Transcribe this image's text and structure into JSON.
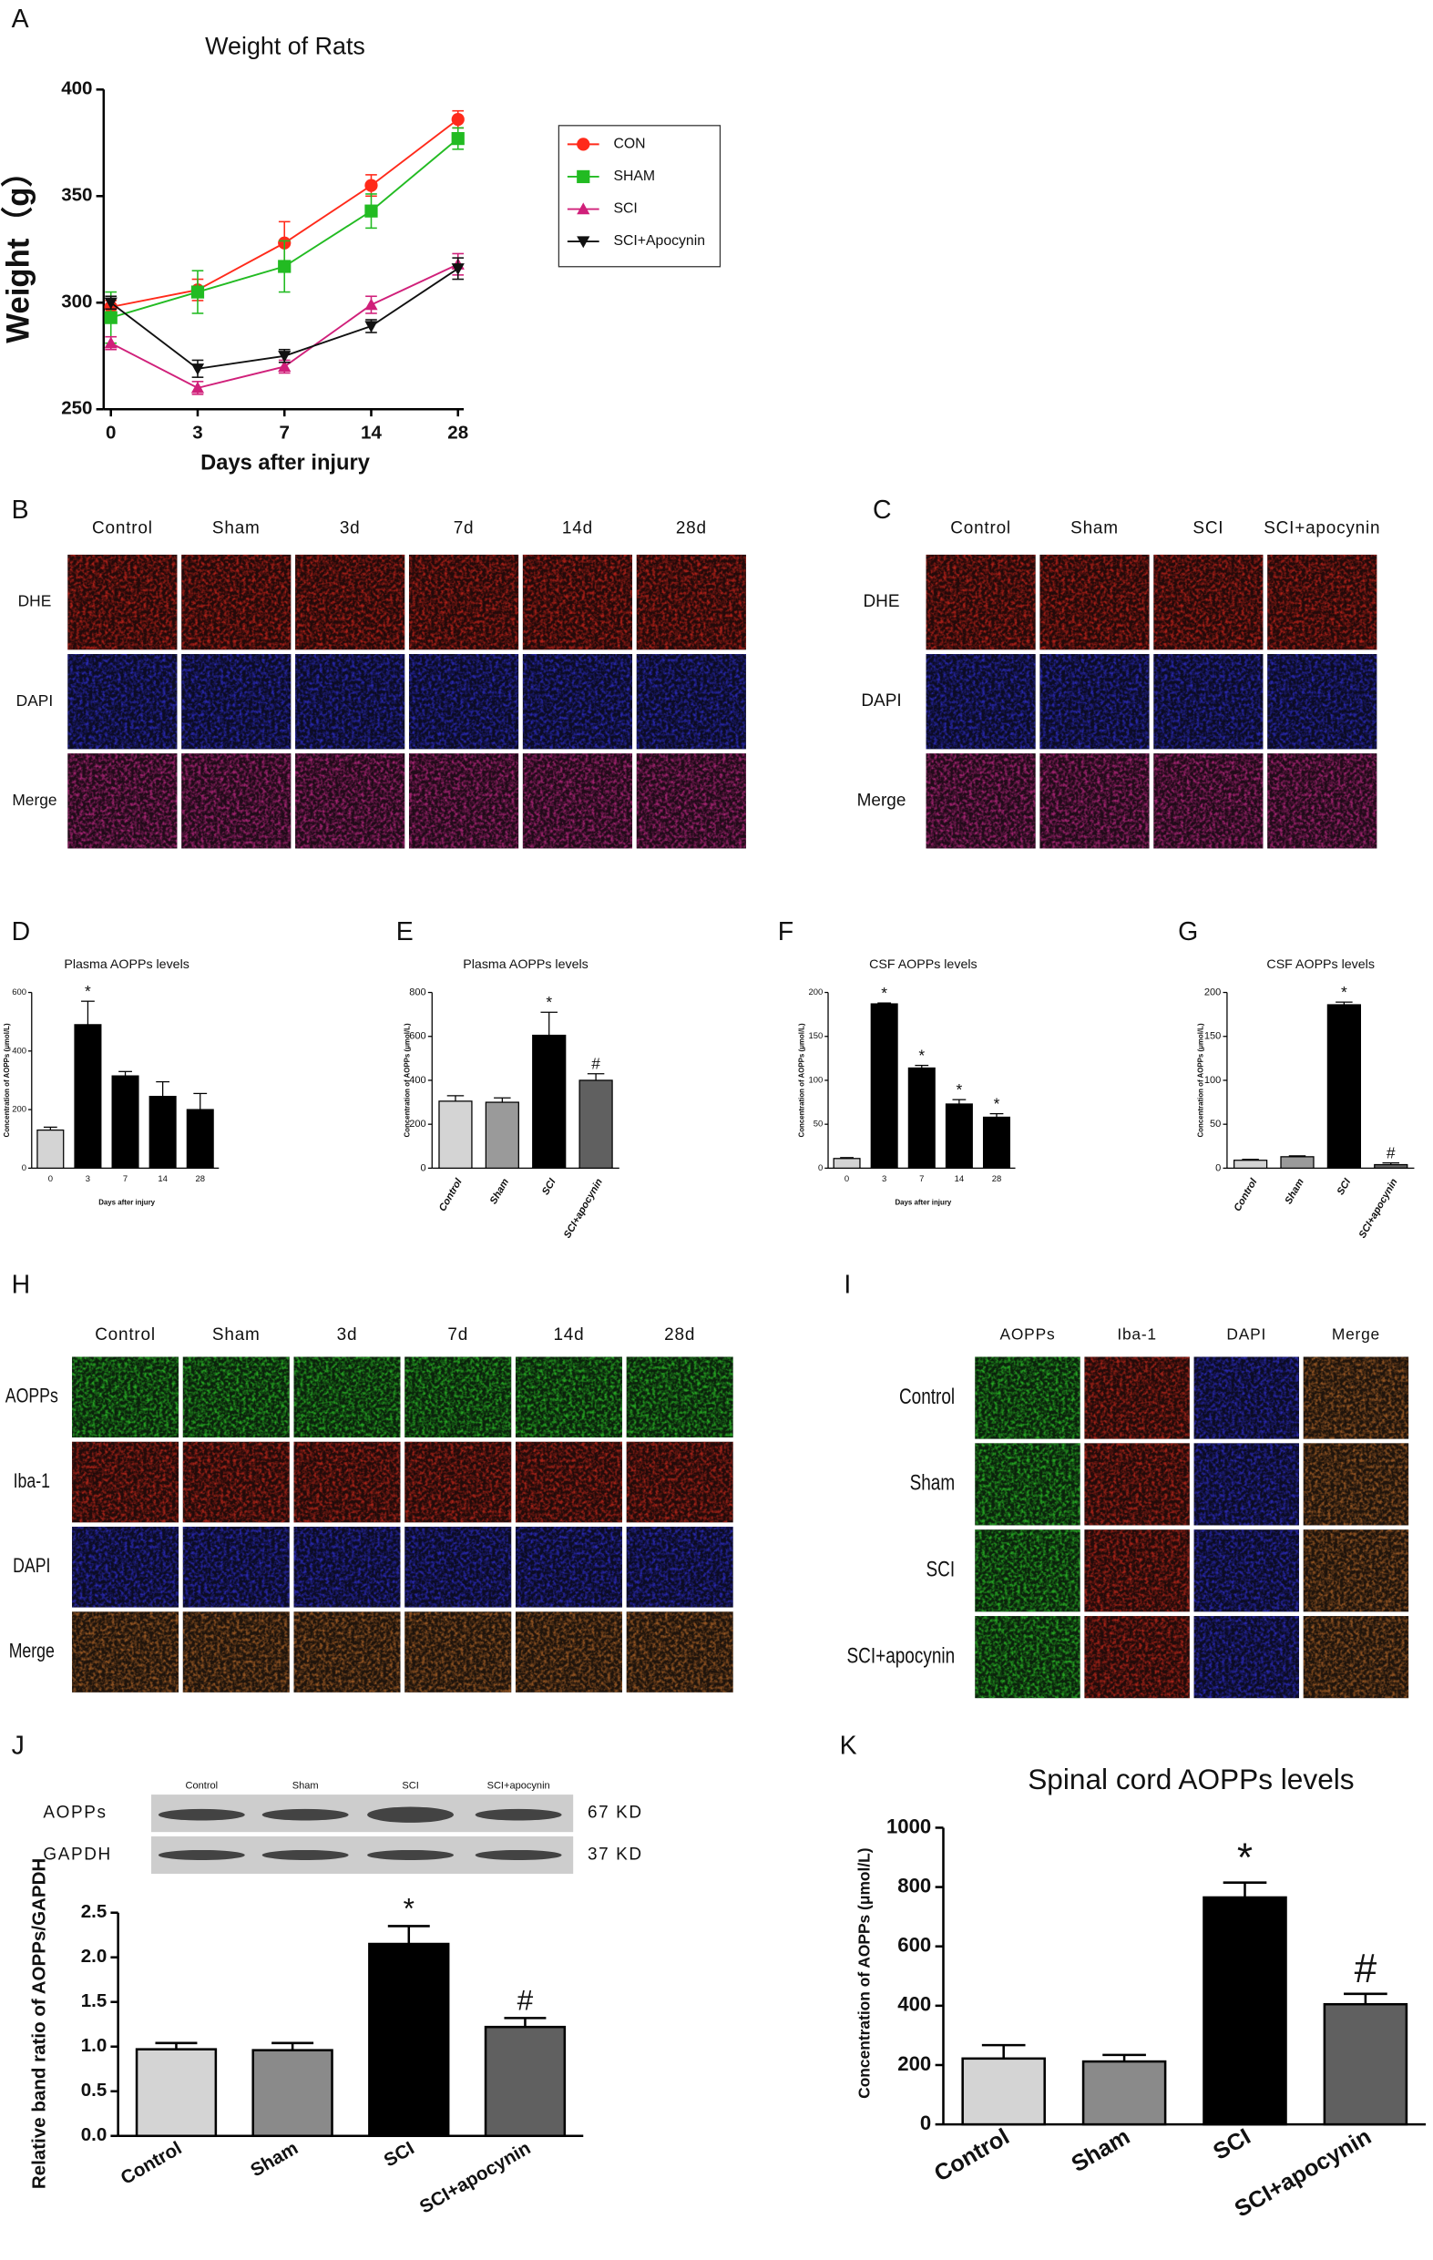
{
  "chart_data": [
    {
      "letter": "A",
      "type": "line",
      "title": "Weight of Rats",
      "x_label": "Days after injury",
      "y_label": "Weight（g）",
      "categories": [
        "0",
        "3",
        "7",
        "14",
        "28"
      ],
      "ylim": [
        250,
        400
      ],
      "yticks": [
        250,
        300,
        350,
        400
      ],
      "series": [
        {
          "name": "CON",
          "color": "#ff2a1a",
          "marker": "circle",
          "values": [
            298,
            306,
            328,
            355,
            386
          ],
          "errors": [
            3,
            5,
            10,
            5,
            4
          ]
        },
        {
          "name": "SHAM",
          "color": "#22bb22",
          "marker": "square",
          "values": [
            293,
            305,
            317,
            343,
            377
          ],
          "errors": [
            12,
            10,
            12,
            8,
            5
          ]
        },
        {
          "name": "SCI",
          "color": "#d0207a",
          "marker": "triangle-up",
          "values": [
            281,
            260,
            270,
            299,
            318
          ],
          "errors": [
            3,
            3,
            3,
            4,
            5
          ]
        },
        {
          "name": "SCI+Apocynin",
          "color": "#111111",
          "marker": "triangle-down",
          "values": [
            300,
            269,
            275,
            289,
            316
          ],
          "errors": [
            3,
            4,
            3,
            3,
            5
          ]
        }
      ]
    },
    {
      "letter": "D",
      "type": "bar",
      "title": "Plasma AOPPs levels",
      "x_label": "Days after injury",
      "y_label": "Concentration of AOPPs (μmol/L)",
      "categories": [
        "0",
        "3",
        "7",
        "14",
        "28"
      ],
      "values": [
        130,
        490,
        315,
        245,
        200
      ],
      "errors": [
        10,
        80,
        15,
        50,
        55
      ],
      "colors": [
        "#d4d4d4",
        "#000000",
        "#000000",
        "#000000",
        "#000000"
      ],
      "ylim": [
        0,
        600
      ],
      "yticks": [
        0,
        200,
        400,
        600
      ],
      "annotations": [
        {
          "category": "3",
          "text": "*"
        }
      ]
    },
    {
      "letter": "E",
      "type": "bar",
      "title": "Plasma AOPPs levels",
      "y_label": "Concentration of AOPPs (μmol/L)",
      "categories": [
        "Control",
        "Sham",
        "SCI",
        "SCI+apocynin"
      ],
      "values": [
        305,
        300,
        605,
        400
      ],
      "errors": [
        25,
        20,
        105,
        30
      ],
      "colors": [
        "#d4d4d4",
        "#9a9a9a",
        "#000000",
        "#606060"
      ],
      "ylim": [
        0,
        800
      ],
      "yticks": [
        0,
        200,
        400,
        600,
        800
      ],
      "annotations": [
        {
          "category": "SCI",
          "text": "*"
        },
        {
          "category": "SCI+apocynin",
          "text": "#"
        }
      ]
    },
    {
      "letter": "F",
      "type": "bar",
      "title": "CSF AOPPs levels",
      "x_label": "Days after injury",
      "y_label": "Concentration of AOPPs (μmol/L)",
      "categories": [
        "0",
        "3",
        "7",
        "14",
        "28"
      ],
      "values": [
        11,
        187,
        114,
        73,
        58
      ],
      "errors": [
        1,
        1,
        3,
        5,
        4
      ],
      "colors": [
        "#d4d4d4",
        "#000000",
        "#000000",
        "#000000",
        "#000000"
      ],
      "ylim": [
        0,
        200
      ],
      "yticks": [
        0,
        50,
        100,
        150,
        200
      ],
      "annotations": [
        {
          "category": "3",
          "text": "*"
        },
        {
          "category": "7",
          "text": "*"
        },
        {
          "category": "14",
          "text": "*"
        },
        {
          "category": "28",
          "text": "*"
        }
      ]
    },
    {
      "letter": "G",
      "type": "bar",
      "title": "CSF AOPPs levels",
      "y_label": "Concentration of AOPPs (μmol/L)",
      "categories": [
        "Control",
        "Sham",
        "SCI",
        "SCI+apocynin"
      ],
      "values": [
        9,
        13,
        186,
        4
      ],
      "errors": [
        1,
        1,
        3,
        2
      ],
      "colors": [
        "#d4d4d4",
        "#9a9a9a",
        "#000000",
        "#606060"
      ],
      "ylim": [
        0,
        200
      ],
      "yticks": [
        0,
        50,
        100,
        150,
        200
      ],
      "annotations": [
        {
          "category": "SCI",
          "text": "*"
        },
        {
          "category": "SCI+apocynin",
          "text": "#"
        }
      ]
    },
    {
      "letter": "J",
      "type": "bar",
      "y_label": "Relative band ratio of AOPPs/GAPDH",
      "categories": [
        "Control",
        "Sham",
        "SCI",
        "SCI+apocynin"
      ],
      "values": [
        0.97,
        0.96,
        2.15,
        1.22
      ],
      "errors": [
        0.07,
        0.08,
        0.2,
        0.1
      ],
      "colors": [
        "#d4d4d4",
        "#8a8a8a",
        "#000000",
        "#606060"
      ],
      "ylim": [
        0,
        2.5
      ],
      "yticks": [
        {
          "value": 0,
          "label": "0.0"
        },
        0.5,
        {
          "value": 1,
          "label": "1.0"
        },
        1.5,
        {
          "value": 2,
          "label": "2.0"
        },
        2.5
      ],
      "annotations": [
        {
          "category": "SCI",
          "text": "*"
        },
        {
          "category": "SCI+apocynin",
          "text": "#"
        }
      ]
    },
    {
      "letter": "K",
      "type": "bar",
      "title": "Spinal cord AOPPs levels",
      "y_label": "Concentration of AOPPs (μmol/L)",
      "categories": [
        "Control",
        "Sham",
        "SCI",
        "SCI+apocynin"
      ],
      "values": [
        222,
        212,
        765,
        405
      ],
      "errors": [
        45,
        22,
        50,
        35
      ],
      "colors": [
        "#d4d4d4",
        "#8a8a8a",
        "#000000",
        "#606060"
      ],
      "ylim": [
        0,
        1000
      ],
      "yticks": [
        0,
        200,
        400,
        600,
        800,
        1000
      ],
      "annotations": [
        {
          "category": "SCI",
          "text": "*"
        },
        {
          "category": "SCI+apocynin",
          "text": "#"
        }
      ]
    }
  ],
  "micrographs": [
    {
      "letter": "B",
      "columns": [
        "Control",
        "Sham",
        "3d",
        "7d",
        "14d",
        "28d"
      ],
      "rows": [
        "DHE",
        "DAPI",
        "Merge"
      ],
      "tint_by": "rows",
      "tile_colors": [
        "#d8261c",
        "#3030d8",
        "#c82a8a"
      ]
    },
    {
      "letter": "C",
      "columns": [
        "Control",
        "Sham",
        "SCI",
        "SCI+apocynin"
      ],
      "rows": [
        "DHE",
        "DAPI",
        "Merge"
      ],
      "tint_by": "rows",
      "tile_colors": [
        "#d8261c",
        "#3030d8",
        "#c82a8a"
      ]
    },
    {
      "letter": "H",
      "columns": [
        "Control",
        "Sham",
        "3d",
        "7d",
        "14d",
        "28d"
      ],
      "rows": [
        "AOPPs",
        "Iba-1",
        "DAPI",
        "Merge"
      ],
      "tint_by": "rows",
      "tile_colors": [
        "#2ed02a",
        "#d02a1c",
        "#3030d8",
        "#b86a2a"
      ]
    },
    {
      "letter": "I",
      "columns": [
        "AOPPs",
        "Iba-1",
        "DAPI",
        "Merge"
      ],
      "rows": [
        "Control",
        "Sham",
        "SCI",
        "SCI+apocynin"
      ],
      "tint_by": "columns",
      "tile_colors": [
        "#2ed02a",
        "#d02a1c",
        "#3030d8",
        "#b86a2a"
      ]
    }
  ],
  "blot": {
    "lanes": [
      "Control",
      "Sham",
      "SCI",
      "SCI+apocynin"
    ],
    "bands": [
      {
        "name": "AOPPs",
        "size": "67 KD"
      },
      {
        "name": "GAPDH",
        "size": "37 KD"
      }
    ]
  }
}
